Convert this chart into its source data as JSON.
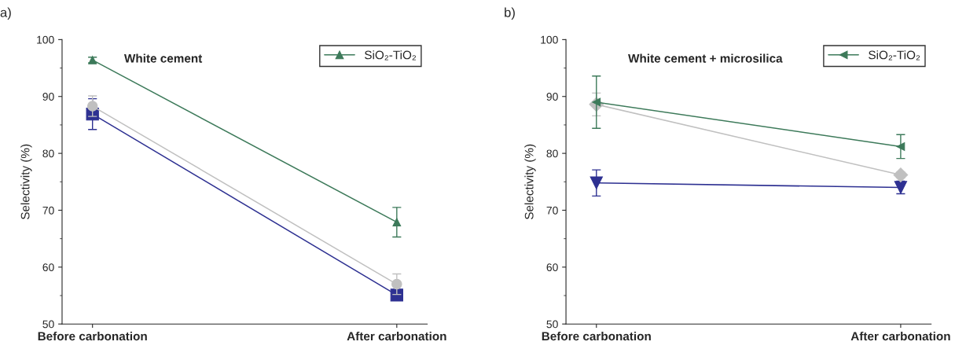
{
  "chart_data": [
    {
      "type": "line",
      "title": "White cement",
      "ylabel": "Selectivity (%)",
      "annotations": [
        "a)"
      ],
      "categories": [
        "Before carbonation",
        "After carbonation"
      ],
      "ylim": [
        50,
        100
      ],
      "yticks": [
        50,
        60,
        70,
        80,
        90,
        100
      ],
      "grid": false,
      "legend": "top right",
      "series": [
        {
          "color": "#2e3192",
          "marker": "square",
          "values": [
            86.9,
            55.1
          ],
          "errors": [
            2.7,
            0.8
          ]
        },
        {
          "color": "#c0c0c0",
          "marker": "circle",
          "values": [
            88.3,
            57.0
          ],
          "errors": [
            1.8,
            1.8
          ]
        },
        {
          "name": "SiO₂-TiO₂",
          "color": "#3d7a5a",
          "marker": "triangle",
          "values": [
            96.4,
            67.9
          ],
          "errors": [
            0.5,
            2.6
          ]
        }
      ]
    },
    {
      "type": "line",
      "title": "White cement + microsilica",
      "ylabel": "Selectivity (%)",
      "annotations": [
        "b)"
      ],
      "categories": [
        "Before carbonation",
        "After carbonation"
      ],
      "ylim": [
        50,
        100
      ],
      "yticks": [
        50,
        60,
        70,
        80,
        90,
        100
      ],
      "grid": false,
      "legend": "top right",
      "series": [
        {
          "color": "#2e3192",
          "marker": "triangle_down",
          "values": [
            74.8,
            74.0
          ],
          "errors": [
            2.3,
            1.1
          ]
        },
        {
          "color": "#c0c0c0",
          "marker": "diamond",
          "values": [
            88.6,
            76.2
          ],
          "errors": [
            2.0,
            0.5
          ]
        },
        {
          "name": "SiO₂-TiO₂",
          "color": "#3d7a5a",
          "marker": "triangle_left",
          "values": [
            89.0,
            81.2
          ],
          "errors": [
            4.6,
            2.1
          ]
        }
      ]
    }
  ]
}
